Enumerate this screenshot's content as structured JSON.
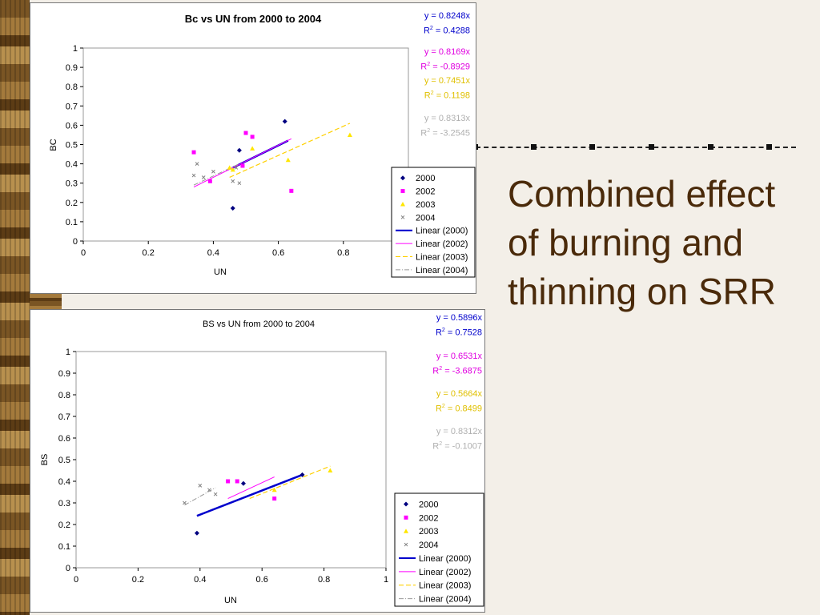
{
  "slide": {
    "title": "Combined effect of burning and thinning on SRR"
  },
  "charts": [
    {
      "equations": [
        {
          "eq": "y = 0.8248x",
          "r2": "= 0.4288",
          "color": "#0000cc"
        },
        {
          "eq": "y = 0.8169x",
          "r2": "= -0.8929",
          "color": "#e000e0"
        },
        {
          "eq": "y = 0.7451x",
          "r2": "= 0.1198",
          "color": "#e0c000"
        },
        {
          "eq": "y = 0.8313x",
          "r2": "= -3.2545",
          "color": "#b0b0b0"
        }
      ]
    },
    {
      "equations": [
        {
          "eq": "y = 0.5896x",
          "r2": "= 0.7528",
          "color": "#0000cc"
        },
        {
          "eq": "y = 0.6531x",
          "r2": "= -3.6875",
          "color": "#e000e0"
        },
        {
          "eq": "y = 0.5664x",
          "r2": "= 0.8499",
          "color": "#e0c000"
        },
        {
          "eq": "y = 0.8312x",
          "r2": "= -0.1007",
          "color": "#b0b0b0"
        }
      ]
    }
  ],
  "chart_data": [
    {
      "type": "scatter",
      "title": "Bc vs UN from 2000 to 2004",
      "xlabel": "UN",
      "ylabel": "BC",
      "xlim": [
        0,
        1
      ],
      "ylim": [
        0,
        1
      ],
      "xticks": [
        "0",
        "0.2",
        "0.4",
        "0.6",
        "0.8",
        "1"
      ],
      "yticks": [
        "0",
        "0.1",
        "0.2",
        "0.3",
        "0.4",
        "0.5",
        "0.6",
        "0.7",
        "0.8",
        "0.9",
        "1"
      ],
      "grid": false,
      "legend_position": "right",
      "series": [
        {
          "name": "2000",
          "color": "#000080",
          "marker": "diamond",
          "points": [
            [
              0.62,
              0.62
            ],
            [
              0.48,
              0.47
            ],
            [
              0.46,
              0.17
            ]
          ]
        },
        {
          "name": "2002",
          "color": "#ff00ff",
          "marker": "square",
          "points": [
            [
              0.34,
              0.46
            ],
            [
              0.5,
              0.56
            ],
            [
              0.52,
              0.54
            ],
            [
              0.49,
              0.39
            ],
            [
              0.39,
              0.31
            ],
            [
              0.64,
              0.26
            ]
          ]
        },
        {
          "name": "2003",
          "color": "#ffe600",
          "marker": "triangle",
          "points": [
            [
              0.82,
              0.55
            ],
            [
              0.52,
              0.48
            ],
            [
              0.63,
              0.42
            ],
            [
              0.46,
              0.37
            ],
            [
              0.45,
              0.38
            ]
          ]
        },
        {
          "name": "2004",
          "color": "#808080",
          "marker": "x",
          "points": [
            [
              0.35,
              0.4
            ],
            [
              0.34,
              0.34
            ],
            [
              0.37,
              0.33
            ],
            [
              0.4,
              0.36
            ],
            [
              0.46,
              0.31
            ],
            [
              0.48,
              0.3
            ],
            [
              0.47,
              0.38
            ]
          ]
        }
      ],
      "trendlines": [
        {
          "name": "Linear (2000)",
          "color": "#0000cc",
          "dash": "",
          "width": 2.5,
          "x": [
            0.46,
            0.63
          ],
          "y": [
            0.38,
            0.52
          ]
        },
        {
          "name": "Linear (2002)",
          "color": "#ff00ff",
          "dash": "",
          "width": 1,
          "x": [
            0.34,
            0.64
          ],
          "y": [
            0.28,
            0.53
          ]
        },
        {
          "name": "Linear (2003)",
          "color": "#ffd000",
          "dash": "6,3",
          "width": 1.2,
          "x": [
            0.45,
            0.82
          ],
          "y": [
            0.33,
            0.61
          ]
        },
        {
          "name": "Linear (2004)",
          "color": "#999999",
          "dash": "6,2,1,2",
          "width": 1,
          "x": [
            0.34,
            0.48
          ],
          "y": [
            0.29,
            0.4
          ]
        }
      ]
    },
    {
      "type": "scatter",
      "title": "BS vs UN from 2000 to 2004",
      "xlabel": "UN",
      "ylabel": "BS",
      "xlim": [
        0,
        1
      ],
      "ylim": [
        0,
        1
      ],
      "xticks": [
        "0",
        "0.2",
        "0.4",
        "0.6",
        "0.8",
        "1"
      ],
      "yticks": [
        "0",
        "0.1",
        "0.2",
        "0.3",
        "0.4",
        "0.5",
        "0.6",
        "0.7",
        "0.8",
        "0.9",
        "1"
      ],
      "grid": false,
      "legend_position": "right",
      "series": [
        {
          "name": "2000",
          "color": "#000080",
          "marker": "diamond",
          "points": [
            [
              0.73,
              0.43
            ],
            [
              0.54,
              0.39
            ],
            [
              0.39,
              0.16
            ]
          ]
        },
        {
          "name": "2002",
          "color": "#ff00ff",
          "marker": "square",
          "points": [
            [
              0.49,
              0.4
            ],
            [
              0.52,
              0.4
            ],
            [
              0.64,
              0.32
            ]
          ]
        },
        {
          "name": "2003",
          "color": "#ffe600",
          "marker": "triangle",
          "points": [
            [
              0.82,
              0.45
            ],
            [
              0.64,
              0.36
            ]
          ]
        },
        {
          "name": "2004",
          "color": "#808080",
          "marker": "x",
          "points": [
            [
              0.4,
              0.38
            ],
            [
              0.35,
              0.3
            ],
            [
              0.45,
              0.34
            ],
            [
              0.43,
              0.36
            ]
          ]
        }
      ],
      "trendlines": [
        {
          "name": "Linear (2000)",
          "color": "#0000cc",
          "dash": "",
          "width": 2.5,
          "x": [
            0.39,
            0.73
          ],
          "y": [
            0.24,
            0.43
          ]
        },
        {
          "name": "Linear (2002)",
          "color": "#ff00ff",
          "dash": "",
          "width": 1,
          "x": [
            0.49,
            0.64
          ],
          "y": [
            0.32,
            0.42
          ]
        },
        {
          "name": "Linear (2003)",
          "color": "#ffd000",
          "dash": "6,3",
          "width": 1.2,
          "x": [
            0.56,
            0.82
          ],
          "y": [
            0.32,
            0.47
          ]
        },
        {
          "name": "Linear (2004)",
          "color": "#999999",
          "dash": "6,2,1,2",
          "width": 1,
          "x": [
            0.35,
            0.45
          ],
          "y": [
            0.29,
            0.37
          ]
        }
      ]
    }
  ]
}
